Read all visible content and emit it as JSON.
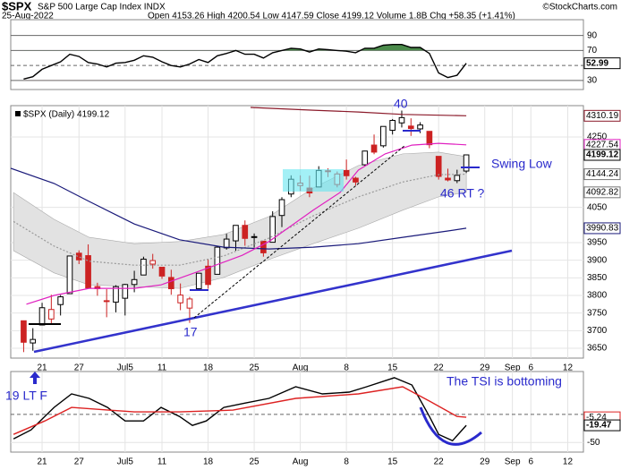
{
  "header": {
    "symbol": "$SPX",
    "name": "S&P 500 Large Cap Index INDX",
    "date": "25-Aug-2022",
    "quote": "Open 4153.26 High 4200.54 Low 4147.59 Close 4199.12 Volume 1.8B Chg +58.35 (+1.41%)",
    "credit": "©StockCharts.com"
  },
  "annotations": {
    "peak": "40",
    "swing_low": "Swing Low",
    "retest": "46 RT ?",
    "low": "17",
    "start": "19 LT F",
    "tsi_note": "The TSI is bottoming"
  },
  "chart_data": [
    {
      "type": "line",
      "xlim": [
        -1.4,
        60.7
      ],
      "ylim": [
        18,
        111
      ],
      "yticks": [
        30,
        70,
        90
      ],
      "dashed_lines": [
        50
      ],
      "overbought": 70,
      "oversold": 30,
      "overbought_color": "#4a8a4a",
      "oversold_color": "#9a5a5a",
      "series": [
        {
          "color": "#000000",
          "values": [
            32,
            35,
            45,
            50,
            55,
            65,
            62,
            54,
            52,
            48,
            53,
            54,
            57,
            63,
            61,
            55,
            50,
            48,
            52,
            58,
            54,
            63,
            66,
            70,
            65,
            65,
            60,
            67,
            70,
            73,
            72,
            68,
            72,
            71,
            70,
            69,
            67,
            73,
            73,
            77,
            78,
            78,
            74,
            74,
            66,
            40,
            34,
            37,
            52.99
          ]
        }
      ],
      "tags": [
        {
          "value": 52.99,
          "color": "#000000"
        }
      ]
    },
    {
      "type": "candlestick",
      "legend": "$SPX (Daily) 4199.12",
      "xlim": [
        -1.4,
        60.7
      ],
      "ylim": [
        3622,
        4339
      ],
      "yticks": [
        3650,
        3700,
        3750,
        3800,
        3850,
        3900,
        3950,
        4050,
        4250
      ],
      "xticks": [
        {
          "value": 2,
          "label": "21"
        },
        {
          "value": 6,
          "label": "27"
        },
        {
          "value": 11,
          "label": "Jul5"
        },
        {
          "value": 15,
          "label": "11"
        },
        {
          "value": 20,
          "label": "18"
        },
        {
          "value": 25,
          "label": "25"
        },
        {
          "value": 30,
          "label": "Aug"
        },
        {
          "value": 35,
          "label": "8"
        },
        {
          "value": 40,
          "label": "15"
        },
        {
          "value": 45,
          "label": "22"
        },
        {
          "value": 50,
          "label": "29"
        },
        {
          "value": 53,
          "label": "Sep"
        },
        {
          "value": 55,
          "label": "6"
        },
        {
          "value": 59,
          "label": "12"
        }
      ],
      "up_color": "#000000",
      "down_color": "#cc2222",
      "open": [
        3728,
        3665,
        3716,
        3733,
        3774,
        3805,
        3920,
        3913,
        3825,
        3785,
        3781,
        3792,
        3831,
        3858,
        3889,
        3880,
        3851,
        3779,
        3764,
        3819,
        3883,
        3860,
        3935,
        3955,
        3999,
        3966,
        3954,
        3951,
        4027,
        4088,
        4112,
        4105,
        4108,
        4154,
        4115,
        4155,
        4133,
        4171,
        4227,
        4225,
        4269,
        4290,
        4281,
        4273,
        4266,
        4195,
        4133,
        4126,
        4153.26
      ],
      "high": [
        3728,
        3707,
        3779,
        3802,
        3801,
        3913,
        3928,
        3945,
        3836,
        3818,
        3829,
        3833,
        3870,
        3910,
        3918,
        3880,
        3873,
        3834,
        3796,
        3864,
        3902,
        3939,
        3975,
        3999,
        4013,
        3976,
        3954,
        4039,
        4079,
        4141,
        4141,
        4140,
        4167,
        4161,
        4152,
        4186,
        4137,
        4211,
        4257,
        4280,
        4301,
        4325,
        4303,
        4292,
        4266,
        4195,
        4160,
        4157,
        4200.54
      ],
      "low": [
        3639,
        3643,
        3716,
        3717,
        3743,
        3805,
        3889,
        3820,
        3799,
        3738,
        3752,
        3743,
        3809,
        3858,
        3876,
        3847,
        3802,
        3758,
        3722,
        3817,
        3819,
        3860,
        3930,
        3927,
        3941,
        3936,
        3910,
        3951,
        3994,
        4079,
        4097,
        4079,
        4108,
        4136,
        4107,
        4129,
        4112,
        4167,
        4201,
        4220,
        4257,
        4277,
        4253,
        4261,
        4218,
        4129,
        4124,
        4119,
        4147.59
      ],
      "close": [
        3667,
        3675,
        3765,
        3760,
        3796,
        3912,
        3901,
        3821,
        3819,
        3785,
        3825,
        3831,
        3845,
        3903,
        3899,
        3855,
        3819,
        3801,
        3790,
        3863,
        3831,
        3937,
        3960,
        3999,
        3962,
        3967,
        3921,
        4024,
        4072,
        4130,
        4119,
        4091,
        4155,
        4152,
        4145,
        4140,
        4122,
        4210,
        4207,
        4280,
        4297,
        4305,
        4274,
        4284,
        4228,
        4138,
        4128,
        4141,
        4199.12
      ],
      "band": {
        "fill": "#e2e2e2",
        "x": [
          -1.1,
          3.3,
          7.1,
          12,
          16.9,
          21.7,
          26.6,
          31.4,
          36.3,
          41.1,
          45,
          48
        ],
        "upper": [
          4092,
          4016,
          3965,
          3947,
          3953,
          3973,
          4024,
          4105,
          4169,
          4202,
          4207,
          4194
        ],
        "lower": [
          3927,
          3864,
          3830,
          3825,
          3820,
          3851,
          3902,
          3947,
          3991,
          4042,
          4080,
          4092.82
        ]
      },
      "series": [
        {
          "color": "#999999",
          "dashed": true,
          "x": [
            -1.1,
            3.3,
            7.1,
            12,
            16.9,
            21.7,
            26.6,
            31.4,
            36.3,
            41.1,
            45,
            48
          ],
          "values": [
            4010,
            3940,
            3897,
            3886,
            3886,
            3912,
            3963,
            4026,
            4080,
            4122,
            4143,
            4144.24
          ]
        },
        {
          "color": "#1a1a7a",
          "x": [
            -1.4,
            3.3,
            7.1,
            12,
            16.9,
            21.7,
            26.6,
            31.4,
            36.3,
            41.1,
            46,
            48
          ],
          "values": [
            4161,
            4118,
            4067,
            4003,
            3958,
            3937,
            3932,
            3937,
            3947,
            3965,
            3983,
            3990.83
          ]
        },
        {
          "color": "#8b1a2a",
          "x": [
            24.6,
            31.4,
            36.3,
            41.1,
            48
          ],
          "values": [
            4334,
            4326,
            4321,
            4314,
            4310.19
          ]
        },
        {
          "color": "#e020c0",
          "x": [
            0.3,
            3.3,
            7.1,
            12,
            14.9,
            19.8,
            23.7,
            26.6,
            31.4,
            34.3,
            36.3,
            39.2,
            42.1,
            45,
            48
          ],
          "values": [
            3775,
            3800,
            3820,
            3820,
            3830,
            3876,
            3914,
            3953,
            4042,
            4092,
            4156,
            4202,
            4227,
            4232,
            4227.54
          ]
        }
      ],
      "tags": [
        {
          "value": 4310.19,
          "color": "#8b1a2a"
        },
        {
          "value": 4227.54,
          "color": "#e020c0"
        },
        {
          "value": 4199.12,
          "color": "#000000"
        },
        {
          "value": 4144.24,
          "color": "#777777"
        },
        {
          "value": 4092.82,
          "color": "#777777"
        },
        {
          "value": 3990.83,
          "color": "#1a1a7a"
        }
      ]
    },
    {
      "type": "line",
      "xlim": [
        -1.4,
        60.7
      ],
      "ylim": [
        -67,
        76
      ],
      "yticks": [
        -50
      ],
      "dashed_lines": [
        0
      ],
      "xticks": [
        {
          "value": 2,
          "label": "21"
        },
        {
          "value": 6,
          "label": "27"
        },
        {
          "value": 11,
          "label": "Jul5"
        },
        {
          "value": 15,
          "label": "11"
        },
        {
          "value": 20,
          "label": "18"
        },
        {
          "value": 25,
          "label": "25"
        },
        {
          "value": 30,
          "label": "Aug"
        },
        {
          "value": 35,
          "label": "8"
        },
        {
          "value": 40,
          "label": "15"
        },
        {
          "value": 45,
          "label": "22"
        },
        {
          "value": 50,
          "label": "29"
        },
        {
          "value": 53,
          "label": "Sep"
        },
        {
          "value": 55,
          "label": "6"
        },
        {
          "value": 59,
          "label": "12"
        }
      ],
      "series": [
        {
          "color": "#000000",
          "x": [
            -1.1,
            0.8,
            3.3,
            5.2,
            7.1,
            9.1,
            11,
            13,
            14.9,
            16.9,
            18.3,
            19.8,
            21.7,
            24.1,
            26.6,
            29.5,
            32.4,
            35.3,
            37.2,
            40.2,
            42.1,
            44,
            45,
            46.5,
            48
          ],
          "values": [
            -43.6,
            -27.6,
            12.3,
            36.3,
            28.3,
            12.3,
            -11.7,
            -11.7,
            12.3,
            -3.7,
            -19.6,
            -11.7,
            12.3,
            20.3,
            28.3,
            49,
            36.3,
            39.5,
            49,
            65,
            52.2,
            -3.7,
            -35.6,
            -46.8,
            -19.47
          ]
        },
        {
          "color": "#dd2222",
          "x": [
            -1.1,
            2.3,
            5.2,
            12,
            16.9,
            22.7,
            29.5,
            36.3,
            41.1,
            44,
            47,
            48
          ],
          "values": [
            -35.6,
            -11.7,
            12.3,
            4.3,
            4.3,
            7.5,
            28.3,
            36.3,
            49,
            23.5,
            -3.7,
            -5.24
          ]
        }
      ],
      "tags": [
        {
          "value": -5.24,
          "color": "#dd2222"
        },
        {
          "value": -19.47,
          "color": "#000000"
        }
      ]
    }
  ]
}
